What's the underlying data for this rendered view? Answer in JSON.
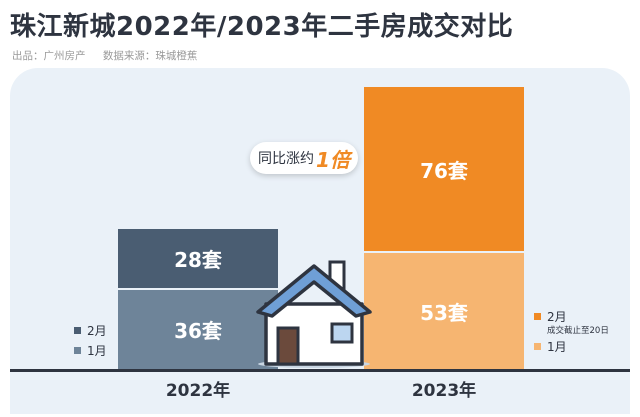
{
  "title": "珠江新城2022年/2023年二手房成交对比",
  "source_left": "出品：广州房产",
  "source_right": "数据来源：珠城橙蕉",
  "callout": {
    "prefix": "同比涨约",
    "highlight": "1倍"
  },
  "chart_data": {
    "type": "bar",
    "stacked": true,
    "categories": [
      "2022年",
      "2023年"
    ],
    "series": [
      {
        "name": "1月",
        "values": [
          36,
          53
        ],
        "labels": [
          "36套",
          "53套"
        ]
      },
      {
        "name": "2月",
        "values": [
          28,
          76
        ],
        "labels": [
          "28套",
          "76套"
        ]
      }
    ],
    "ylim": [
      0,
      130
    ],
    "colors": {
      "2022年": {
        "1月": "#6e8499",
        "2月": "#4a5d72"
      },
      "2023年": {
        "1月": "#f6b571",
        "2月": "#f08a24"
      }
    }
  },
  "legend_2022": [
    {
      "label": "2月",
      "color": "#4a5d72"
    },
    {
      "label": "1月",
      "color": "#6e8499"
    }
  ],
  "legend_2023": [
    {
      "label": "2月",
      "color": "#f08a24",
      "note": "成交截止至20日"
    },
    {
      "label": "1月",
      "color": "#f6b571"
    }
  ]
}
